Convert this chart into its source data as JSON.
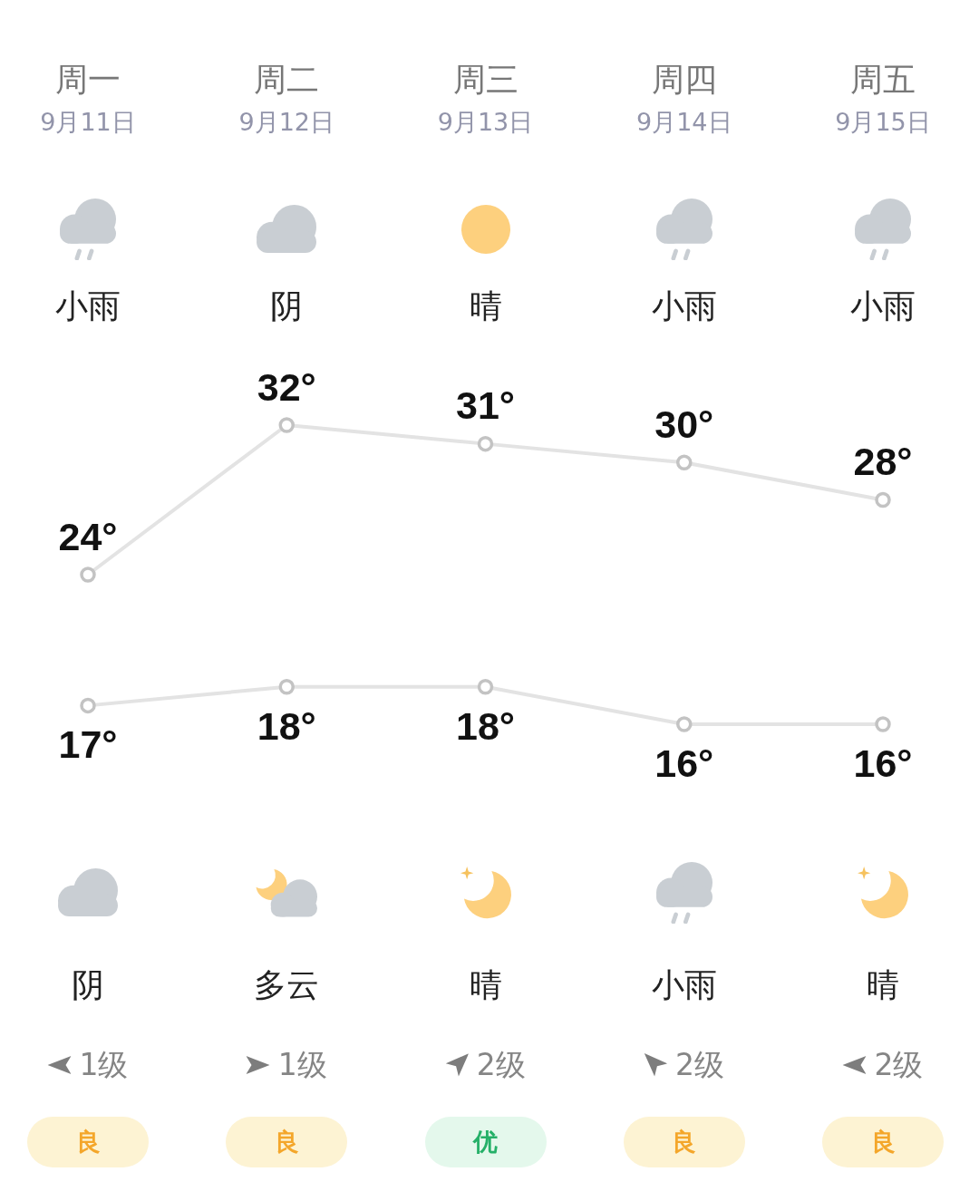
{
  "chart_data": {
    "type": "line",
    "categories": [
      "周一\n9月11日",
      "周二\n9月12日",
      "周三\n9月13日",
      "周四\n9月14日",
      "周五\n9月15日"
    ],
    "series": [
      {
        "color": "#e3e3e3",
        "values": [
          24,
          32,
          31,
          30,
          28
        ],
        "value_labels": [
          "24°",
          "32°",
          "31°",
          "30°",
          "28°"
        ]
      },
      {
        "color": "#e3e3e3",
        "values": [
          17,
          18,
          18,
          16,
          16
        ],
        "value_labels": [
          "17°",
          "18°",
          "18°",
          "16°",
          "16°"
        ]
      }
    ],
    "marker": "circle",
    "tick_labels": "x",
    "annotations": [
      "小雨",
      "阴",
      "晴",
      "小雨",
      "小雨",
      "阴",
      "多云",
      "晴",
      "小雨",
      "晴",
      "1级",
      "1级",
      "2级",
      "2级",
      "2级",
      "良",
      "良",
      "优",
      "良",
      "良"
    ]
  }
}
